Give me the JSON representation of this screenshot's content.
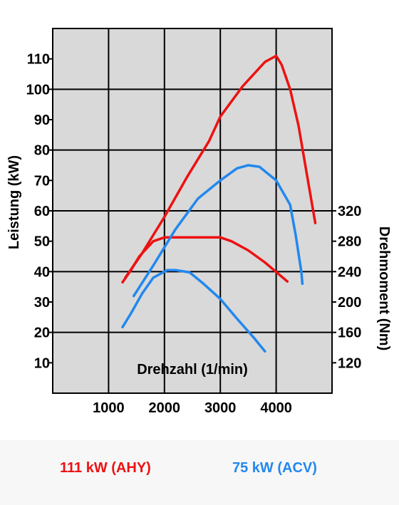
{
  "chart_data": {
    "type": "line",
    "xlabel": "Drehzahl (1/min)",
    "ylabel": "Leistung (kW)",
    "y2label": "Drehmoment (Nm)",
    "xlim": [
      0,
      5000
    ],
    "ylim": [
      0,
      120
    ],
    "y2lim": [
      80,
      360
    ],
    "x_ticks": [
      1000,
      2000,
      3000,
      4000
    ],
    "y_ticks": [
      10,
      20,
      30,
      40,
      50,
      60,
      70,
      80,
      90,
      100,
      110
    ],
    "y2_ticks": [
      120,
      160,
      200,
      240,
      280,
      320
    ],
    "grid": true,
    "legend": [
      {
        "label": "111 kW (AHY)",
        "color": "#ee1111"
      },
      {
        "label": "75 kW (ACV)",
        "color": "#2288ee"
      }
    ],
    "series": [
      {
        "name": "111 kW (AHY)",
        "quantity": "Leistung",
        "axis": "left",
        "color": "#ee1111",
        "points": [
          [
            1300,
            38
          ],
          [
            1600,
            46
          ],
          [
            2000,
            58
          ],
          [
            2400,
            71
          ],
          [
            2800,
            83
          ],
          [
            3000,
            91
          ],
          [
            3400,
            101
          ],
          [
            3800,
            109
          ],
          [
            4000,
            111
          ],
          [
            4100,
            108
          ],
          [
            4250,
            100
          ],
          [
            4400,
            88
          ],
          [
            4550,
            72
          ],
          [
            4700,
            56
          ]
        ]
      },
      {
        "name": "111 kW (AHY)",
        "quantity": "Drehmoment",
        "axis": "right",
        "color": "#ee1111",
        "points": [
          [
            1250,
            226
          ],
          [
            1400,
            242
          ],
          [
            1550,
            260
          ],
          [
            1800,
            280
          ],
          [
            2000,
            285
          ],
          [
            2400,
            285
          ],
          [
            3000,
            285
          ],
          [
            3200,
            280
          ],
          [
            3500,
            268
          ],
          [
            3800,
            252
          ],
          [
            4200,
            227
          ]
        ]
      },
      {
        "name": "75 kW (ACV)",
        "quantity": "Leistung",
        "axis": "left",
        "color": "#2288ee",
        "points": [
          [
            1450,
            32
          ],
          [
            1800,
            42
          ],
          [
            2200,
            54
          ],
          [
            2600,
            64
          ],
          [
            3000,
            70
          ],
          [
            3300,
            74
          ],
          [
            3500,
            75
          ],
          [
            3700,
            74.5
          ],
          [
            4000,
            70
          ],
          [
            4250,
            62
          ],
          [
            4350,
            52
          ],
          [
            4450,
            40
          ],
          [
            4470,
            36
          ]
        ]
      },
      {
        "name": "75 kW (ACV)",
        "quantity": "Drehmoment",
        "axis": "right",
        "color": "#2288ee",
        "points": [
          [
            1250,
            167
          ],
          [
            1400,
            185
          ],
          [
            1600,
            211
          ],
          [
            1800,
            232
          ],
          [
            2050,
            242
          ],
          [
            2200,
            242
          ],
          [
            2450,
            239
          ],
          [
            2700,
            224
          ],
          [
            3000,
            204
          ],
          [
            3300,
            178
          ],
          [
            3600,
            153
          ],
          [
            3800,
            135
          ]
        ]
      }
    ]
  }
}
